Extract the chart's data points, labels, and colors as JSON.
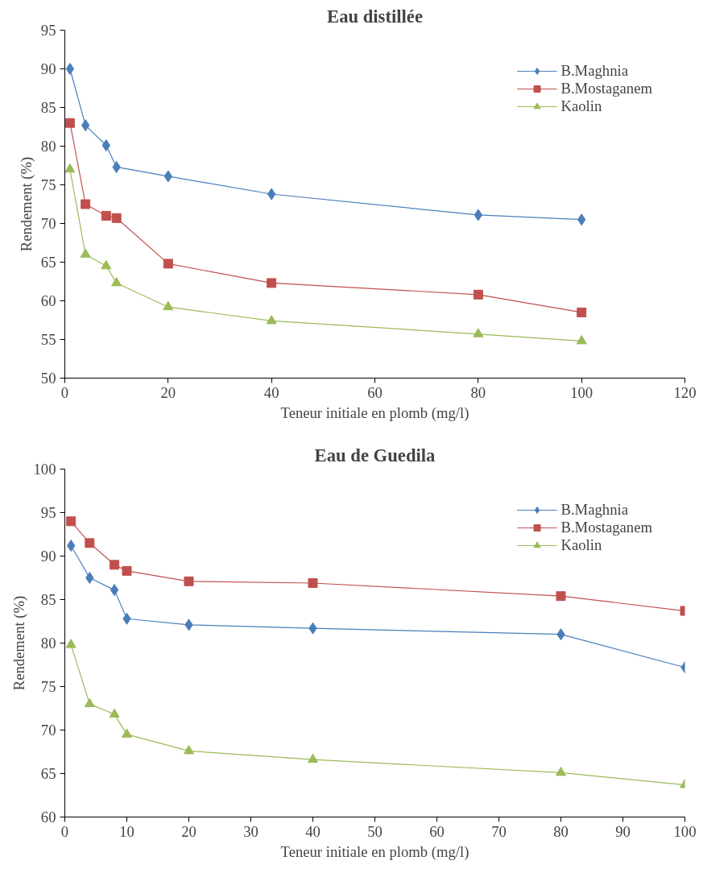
{
  "chart_data": [
    {
      "type": "line",
      "title": "Eau distillée",
      "xlabel": "Teneur initiale en plomb (mg/l)",
      "ylabel": "Rendement (%)",
      "x": [
        1,
        4,
        8,
        10,
        20,
        40,
        80,
        100
      ],
      "series": [
        {
          "name": "B.Maghnia",
          "color": "#4a7ebb",
          "marker": "diamond",
          "values": [
            90,
            82.7,
            80.1,
            77.3,
            76.1,
            73.8,
            71.1,
            70.5
          ]
        },
        {
          "name": "B.Mostaganem",
          "color": "#c0504d",
          "marker": "square",
          "values": [
            83,
            72.5,
            71,
            70.7,
            64.8,
            62.3,
            60.8,
            58.5
          ]
        },
        {
          "name": "Kaolin",
          "color": "#9bbb59",
          "marker": "triangle",
          "values": [
            77,
            66,
            64.5,
            62.3,
            59.2,
            57.4,
            55.7,
            54.8
          ]
        }
      ],
      "xlim": [
        0,
        120
      ],
      "xticks": [
        0,
        20,
        40,
        60,
        80,
        100,
        120
      ],
      "ylim": [
        50,
        95
      ],
      "yticks": [
        50,
        55,
        60,
        65,
        70,
        75,
        80,
        85,
        90,
        95
      ],
      "grid": false,
      "legend": "top right"
    },
    {
      "type": "line",
      "title": "Eau de Guedila",
      "xlabel": "Teneur initiale en plomb (mg/l)",
      "ylabel": "Rendement (%)",
      "x": [
        1,
        4,
        8,
        10,
        20,
        40,
        80,
        100
      ],
      "series": [
        {
          "name": "B.Maghnia",
          "color": "#4a7ebb",
          "marker": "diamond",
          "values": [
            91.2,
            87.5,
            86.1,
            82.8,
            82.1,
            81.7,
            81,
            77.2
          ]
        },
        {
          "name": "B.Mostaganem",
          "color": "#c0504d",
          "marker": "square",
          "values": [
            94,
            91.5,
            89,
            88.3,
            87.1,
            86.9,
            85.4,
            83.7
          ]
        },
        {
          "name": "Kaolin",
          "color": "#9bbb59",
          "marker": "triangle",
          "values": [
            79.8,
            73,
            71.8,
            69.5,
            67.6,
            66.6,
            65.1,
            63.7
          ]
        }
      ],
      "xlim": [
        0,
        100
      ],
      "xticks": [
        0,
        10,
        20,
        30,
        40,
        50,
        60,
        70,
        80,
        90,
        100
      ],
      "ylim": [
        60,
        100
      ],
      "yticks": [
        60,
        65,
        70,
        75,
        80,
        85,
        90,
        95,
        100
      ],
      "grid": false,
      "legend": "top right"
    }
  ]
}
